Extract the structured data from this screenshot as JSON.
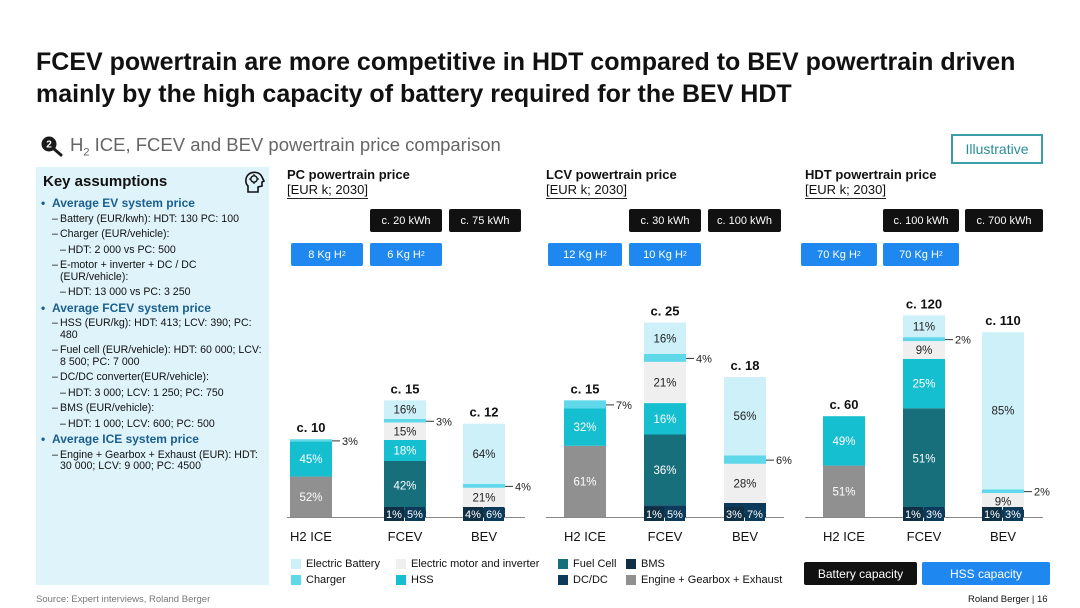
{
  "title": "FCEV powertrain are more competitive in HDT compared to BEV powertrain driven mainly by the high capacity of battery required for the BEV HDT",
  "subtitle_pre": "H",
  "subtitle_sub": "2",
  "subtitle_post": " ICE, FCEV and BEV powertrain price comparison",
  "step_number": "2",
  "illustrative_badge": "Illustrative",
  "key_assumptions": {
    "title": "Key assumptions",
    "ev_header": "Average EV system price",
    "ev_battery": "Battery (EUR/kwh): HDT: 130 PC: 100",
    "ev_charger": "Charger (EUR/vehicle):",
    "ev_charger_val": "HDT: 2 000 vs PC: 500",
    "ev_emotor": "E-motor + inverter + DC / DC (EUR/vehicle):",
    "ev_emotor_val": "HDT: 13 000 vs PC: 3 250",
    "fcev_header": "Average FCEV system price",
    "fcev_hss": "HSS (EUR/kg): HDT: 413; LCV: 390; PC: 480",
    "fcev_fuelcell": "Fuel cell (EUR/vehicle): HDT: 60 000; LCV: 8 500; PC: 7 000",
    "fcev_dcdc": "DC/DC converter(EUR/vehicle):",
    "fcev_dcdc_val": "HDT: 3 000; LCV: 1 250; PC: 750",
    "fcev_bms": "BMS (EUR/vehicle):",
    "fcev_bms_val": "HDT: 1 000; LCV: 600; PC: 500",
    "ice_header": "Average ICE system price",
    "ice_engine": "Engine + Gearbox + Exhaust (EUR): HDT: 30 000; LCV: 9 000; PC: 4500"
  },
  "panels_header": [
    {
      "title": "PC powertrain price",
      "unit": "[EUR k; 2030]",
      "battery_labels": [
        "c. 20 kWh",
        "c. 75 kWh"
      ],
      "hss_labels": [
        {
          "pre": "8 Kg H",
          "sub": "2"
        },
        {
          "pre": "6 Kg H",
          "sub": "2"
        }
      ]
    },
    {
      "title": "LCV powertrain price",
      "unit": "[EUR k; 2030]",
      "battery_labels": [
        "c. 30 kWh",
        "c. 100 kWh"
      ],
      "hss_labels": [
        {
          "pre": "12 Kg H",
          "sub": "2"
        },
        {
          "pre": "10 Kg H",
          "sub": "2"
        }
      ]
    },
    {
      "title": "HDT powertrain price",
      "unit": "[EUR k; 2030]",
      "battery_labels": [
        "c. 100 kWh",
        "c. 700 kWh"
      ],
      "hss_labels": [
        {
          "pre": "70 Kg H",
          "sub": "2"
        },
        {
          "pre": "70 Kg H",
          "sub": "2"
        }
      ]
    }
  ],
  "colors": {
    "Electric Battery": "#cdf0f9",
    "Electric motor and inverter": "#efefef",
    "Fuel Cell": "#176f7c",
    "BMS": "#0e2f44",
    "Charger": "#5fd8ea",
    "HSS": "#16bfcf",
    "DC/DC": "#0c3a5a",
    "Engine + Gearbox + Exhaust": "#909090"
  },
  "legend": [
    {
      "key": "Electric Battery",
      "label": "Electric Battery"
    },
    {
      "key": "Electric motor and inverter",
      "label": "Electric motor and inverter"
    },
    {
      "key": "Fuel Cell",
      "label": "Fuel Cell"
    },
    {
      "key": "BMS",
      "label": "BMS"
    },
    {
      "key": "Charger",
      "label": "Charger"
    },
    {
      "key": "HSS",
      "label": "HSS"
    },
    {
      "key": "DC/DC",
      "label": "DC/DC"
    },
    {
      "key": "Engine + Gearbox + Exhaust",
      "label": "Engine + Gearbox + Exhaust"
    }
  ],
  "buttons": {
    "battery": "Battery capacity",
    "hss": "HSS capacity"
  },
  "source": "Source: Expert interviews, Roland Berger",
  "footer": "Roland Berger  |  16",
  "chart_data": [
    {
      "type": "bar",
      "stacked": true,
      "title": "PC powertrain price",
      "unit": "[EUR k; 2030]",
      "categories": [
        "H2 ICE",
        "FCEV",
        "BEV"
      ],
      "totals": [
        10,
        15,
        12
      ],
      "total_labels": [
        "c. 10",
        "c. 15",
        "c. 12"
      ],
      "ylim": [
        0,
        27
      ],
      "bars": [
        {
          "category": "H2 ICE",
          "segments": [
            {
              "component": "Engine + Gearbox + Exhaust",
              "pct": 52,
              "label": "52%"
            },
            {
              "component": "HSS",
              "pct": 45,
              "label": "45%"
            },
            {
              "component": "Charger",
              "pct": 3,
              "label": "3%"
            }
          ]
        },
        {
          "category": "FCEV",
          "segments": [
            {
              "component": "BMS",
              "pct": 1,
              "label": "1%"
            },
            {
              "component": "DC/DC",
              "pct": 5,
              "label": "5%"
            },
            {
              "component": "Fuel Cell",
              "pct": 42,
              "label": "42%"
            },
            {
              "component": "HSS",
              "pct": 18,
              "label": "18%"
            },
            {
              "component": "Electric motor and inverter",
              "pct": 15,
              "label": "15%"
            },
            {
              "component": "Charger",
              "pct": 3,
              "label": "3%"
            },
            {
              "component": "Electric Battery",
              "pct": 16,
              "label": "16%"
            }
          ]
        },
        {
          "category": "BEV",
          "segments": [
            {
              "component": "BMS",
              "pct": 4,
              "label": "4%"
            },
            {
              "component": "DC/DC",
              "pct": 6,
              "label": "6%"
            },
            {
              "component": "Electric motor and inverter",
              "pct": 21,
              "label": "21%"
            },
            {
              "component": "Charger",
              "pct": 4,
              "label": "4%"
            },
            {
              "component": "Electric Battery",
              "pct": 64,
              "label": "64%"
            }
          ]
        }
      ]
    },
    {
      "type": "bar",
      "stacked": true,
      "title": "LCV powertrain price",
      "unit": "[EUR k; 2030]",
      "categories": [
        "H2 ICE",
        "FCEV",
        "BEV"
      ],
      "totals": [
        15,
        25,
        18
      ],
      "total_labels": [
        "c. 15",
        "c. 25",
        "c. 18"
      ],
      "ylim": [
        0,
        27
      ],
      "bars": [
        {
          "category": "H2 ICE",
          "segments": [
            {
              "component": "Engine + Gearbox + Exhaust",
              "pct": 61,
              "label": "61%"
            },
            {
              "component": "HSS",
              "pct": 32,
              "label": "32%"
            },
            {
              "component": "Charger",
              "pct": 7,
              "label": "7%"
            }
          ]
        },
        {
          "category": "FCEV",
          "segments": [
            {
              "component": "BMS",
              "pct": 1,
              "label": "1%"
            },
            {
              "component": "DC/DC",
              "pct": 5,
              "label": "5%"
            },
            {
              "component": "Fuel Cell",
              "pct": 36,
              "label": "36%"
            },
            {
              "component": "HSS",
              "pct": 16,
              "label": "16%"
            },
            {
              "component": "Electric motor and inverter",
              "pct": 21,
              "label": "21%"
            },
            {
              "component": "Charger",
              "pct": 4,
              "label": "4%"
            },
            {
              "component": "Electric Battery",
              "pct": 16,
              "label": "16%"
            }
          ]
        },
        {
          "category": "BEV",
          "segments": [
            {
              "component": "BMS",
              "pct": 3,
              "label": "3%"
            },
            {
              "component": "DC/DC",
              "pct": 7,
              "label": "7%"
            },
            {
              "component": "Electric motor and inverter",
              "pct": 28,
              "label": "28%"
            },
            {
              "component": "Charger",
              "pct": 6,
              "label": "6%"
            },
            {
              "component": "Electric Battery",
              "pct": 56,
              "label": "56%"
            }
          ]
        }
      ]
    },
    {
      "type": "bar",
      "stacked": true,
      "title": "HDT powertrain price",
      "unit": "[EUR k; 2030]",
      "categories": [
        "H2 ICE",
        "FCEV",
        "BEV"
      ],
      "totals": [
        60,
        120,
        110
      ],
      "total_labels": [
        "c. 60",
        "c. 120",
        "c. 110"
      ],
      "ylim": [
        0,
        125
      ],
      "bars": [
        {
          "category": "H2 ICE",
          "segments": [
            {
              "component": "Engine + Gearbox + Exhaust",
              "pct": 51,
              "label": "51%"
            },
            {
              "component": "HSS",
              "pct": 49,
              "label": "49%"
            }
          ]
        },
        {
          "category": "FCEV",
          "segments": [
            {
              "component": "BMS",
              "pct": 1,
              "label": "1%"
            },
            {
              "component": "DC/DC",
              "pct": 3,
              "label": "3%"
            },
            {
              "component": "Fuel Cell",
              "pct": 51,
              "label": "51%"
            },
            {
              "component": "HSS",
              "pct": 25,
              "label": "25%"
            },
            {
              "component": "Electric motor and inverter",
              "pct": 9,
              "label": "9%"
            },
            {
              "component": "Charger",
              "pct": 2,
              "label": "2%"
            },
            {
              "component": "Electric Battery",
              "pct": 11,
              "label": "11%"
            }
          ]
        },
        {
          "category": "BEV",
          "segments": [
            {
              "component": "BMS",
              "pct": 1,
              "label": "1%"
            },
            {
              "component": "DC/DC",
              "pct": 3,
              "label": "3%"
            },
            {
              "component": "Electric motor and inverter",
              "pct": 9,
              "label": "9%"
            },
            {
              "component": "Charger",
              "pct": 2,
              "label": "2%"
            },
            {
              "component": "Electric Battery",
              "pct": 85,
              "label": "85%"
            }
          ]
        }
      ]
    }
  ]
}
